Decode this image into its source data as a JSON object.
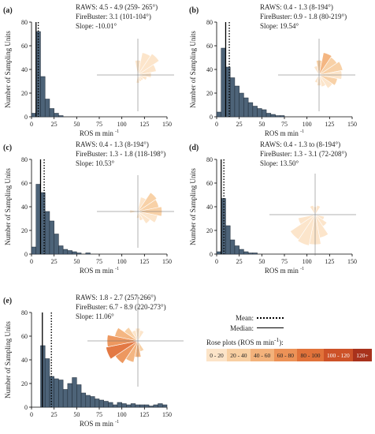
{
  "chart_data": [
    {
      "type": "bar",
      "panel_label": "(a)",
      "annotations": [
        "RAWS: 4.5 - 4.9 (259- 265°)",
        "FireBuster: 3.1 (101-104°)",
        "Slope: -10.01°"
      ],
      "xlabel": "ROS m min",
      "ylabel": "Number of Sampling Units",
      "xlim": [
        0,
        150
      ],
      "ylim": [
        0,
        80
      ],
      "x_ticks": [
        0,
        25,
        50,
        75,
        100,
        125,
        150
      ],
      "y_ticks": [
        0,
        20,
        40,
        60,
        80
      ],
      "bin_width": 5,
      "bin_starts": [
        0,
        5,
        10,
        15,
        20,
        25,
        30,
        35,
        40
      ],
      "values": [
        3,
        72,
        34,
        15,
        7,
        3,
        1,
        0,
        0
      ],
      "mean": 7.5,
      "median": 5,
      "rose": {
        "petals": [
          {
            "angle": 0,
            "length": 0.55,
            "class": 0
          },
          {
            "angle": 22.5,
            "length": 0.85,
            "class": 0
          },
          {
            "angle": 45,
            "length": 0.95,
            "class": 0
          },
          {
            "angle": 67.5,
            "length": 0.7,
            "class": 0
          },
          {
            "angle": 90,
            "length": 0.5,
            "class": 0
          },
          {
            "angle": 112.5,
            "length": 0.35,
            "class": 0
          },
          {
            "angle": 135,
            "length": 0.25,
            "class": 0
          },
          {
            "angle": 157.5,
            "length": 0.25,
            "class": 0
          },
          {
            "angle": 180,
            "length": 0.3,
            "class": 0
          }
        ]
      }
    },
    {
      "type": "bar",
      "panel_label": "(b)",
      "annotations": [
        "RAWS: 0.4 - 1.3  (8-194°)",
        "FireBuster: 0.9 - 1.8  (80-219°)",
        "Slope: 19.54°"
      ],
      "xlabel": "ROS m min",
      "ylabel": "Number of Sampling Units",
      "xlim": [
        0,
        150
      ],
      "ylim": [
        0,
        80
      ],
      "x_ticks": [
        0,
        25,
        50,
        75,
        100,
        125,
        150
      ],
      "y_ticks": [
        0,
        20,
        40,
        60,
        80
      ],
      "bin_width": 5,
      "bin_starts": [
        0,
        5,
        10,
        15,
        20,
        25,
        30,
        35,
        40,
        45,
        50,
        55,
        60,
        65,
        70
      ],
      "values": [
        4,
        58,
        42,
        33,
        26,
        20,
        16,
        12,
        9,
        7,
        6,
        3,
        2,
        1,
        1
      ],
      "mean": 14,
      "median": 10,
      "rose": {
        "petals": [
          {
            "angle": 0,
            "length": 0.55,
            "class": 1
          },
          {
            "angle": 22.5,
            "length": 0.85,
            "class": 2
          },
          {
            "angle": 45,
            "length": 0.8,
            "class": 1
          },
          {
            "angle": 67.5,
            "length": 0.9,
            "class": 1
          },
          {
            "angle": 90,
            "length": 0.85,
            "class": 0
          },
          {
            "angle": 112.5,
            "length": 0.7,
            "class": 1
          },
          {
            "angle": 135,
            "length": 0.6,
            "class": 0
          },
          {
            "angle": 157.5,
            "length": 0.45,
            "class": 0
          },
          {
            "angle": 180,
            "length": 0.4,
            "class": 0
          },
          {
            "angle": 202.5,
            "length": 0.3,
            "class": 0
          },
          {
            "angle": 337.5,
            "length": 0.35,
            "class": 0
          }
        ]
      }
    },
    {
      "type": "bar",
      "panel_label": "(c)",
      "annotations": [
        "RAWS: 0.4 - 1.3  (8-194°)",
        "FireBuster: 1.3 - 1.8  (118-198°)",
        "Slope: 10.53°"
      ],
      "xlabel": "ROS m min",
      "ylabel": "Number of Sampling Units",
      "xlim": [
        0,
        150
      ],
      "ylim": [
        0,
        80
      ],
      "x_ticks": [
        0,
        25,
        50,
        75,
        100,
        125,
        150
      ],
      "y_ticks": [
        0,
        20,
        40,
        60,
        80
      ],
      "bin_width": 5,
      "bin_starts": [
        0,
        5,
        10,
        15,
        20,
        25,
        30,
        35,
        40,
        45,
        50,
        55,
        60
      ],
      "values": [
        6,
        59,
        52,
        36,
        28,
        17,
        7,
        4,
        3,
        2,
        1,
        0,
        1
      ],
      "mean": 14,
      "median": 10,
      "rose": {
        "petals": [
          {
            "angle": 22.5,
            "length": 0.55,
            "class": 0
          },
          {
            "angle": 45,
            "length": 0.85,
            "class": 1
          },
          {
            "angle": 67.5,
            "length": 0.8,
            "class": 1
          },
          {
            "angle": 90,
            "length": 0.9,
            "class": 1
          },
          {
            "angle": 112.5,
            "length": 0.75,
            "class": 0
          },
          {
            "angle": 135,
            "length": 0.55,
            "class": 0
          },
          {
            "angle": 157.5,
            "length": 0.35,
            "class": 0
          },
          {
            "angle": 180,
            "length": 0.25,
            "class": 0
          },
          {
            "angle": 270,
            "length": 0.3,
            "class": 0
          }
        ]
      }
    },
    {
      "type": "bar",
      "panel_label": "(d)",
      "annotations": [
        "RAWS: 0.4 - 1.3 to (8-194°)",
        "FireBuster: 1.3 - 3.1 (72-208°)",
        "Slope: 13.50°"
      ],
      "xlabel": "ROS m min",
      "ylabel": "Number of Sampling Units",
      "xlim": [
        0,
        150
      ],
      "ylim": [
        0,
        80
      ],
      "x_ticks": [
        0,
        25,
        50,
        75,
        100,
        125,
        150
      ],
      "y_ticks": [
        0,
        20,
        40,
        60,
        80
      ],
      "bin_width": 5,
      "bin_starts": [
        0,
        5,
        10,
        15,
        20,
        25,
        30,
        35,
        40
      ],
      "values": [
        2,
        47,
        24,
        12,
        7,
        4,
        2,
        1,
        1
      ],
      "mean": 8,
      "median": 5,
      "rose": {
        "petals": [
          {
            "angle": 0,
            "length": 0.25,
            "class": 0
          },
          {
            "angle": 22.5,
            "length": 0.3,
            "class": 0
          },
          {
            "angle": 112.5,
            "length": 0.3,
            "class": 0
          },
          {
            "angle": 135,
            "length": 0.45,
            "class": 0
          },
          {
            "angle": 157.5,
            "length": 0.75,
            "class": 0
          },
          {
            "angle": 180,
            "length": 0.95,
            "class": 0
          },
          {
            "angle": 202.5,
            "length": 1.0,
            "class": 0
          },
          {
            "angle": 225,
            "length": 0.95,
            "class": 0
          },
          {
            "angle": 247.5,
            "length": 0.55,
            "class": 0
          },
          {
            "angle": 337.5,
            "length": 0.3,
            "class": 0
          }
        ]
      }
    },
    {
      "type": "bar",
      "panel_label": "(e)",
      "annotations": [
        "RAWS: 1.8 - 2.7 (257-266°)",
        "FireBuster: 6.7 - 8.9 (220-273°)",
        "Slope: 11.06°"
      ],
      "xlabel": "ROS m min",
      "ylabel": "Number of Sampling Units",
      "xlim": [
        0,
        150
      ],
      "ylim": [
        0,
        80
      ],
      "x_ticks": [
        0,
        25,
        50,
        75,
        100,
        125,
        150
      ],
      "y_ticks": [
        0,
        20,
        40,
        60,
        80
      ],
      "bin_width": 5,
      "bin_starts": [
        10,
        15,
        20,
        25,
        30,
        35,
        40,
        45,
        50,
        55,
        60,
        65,
        70,
        75,
        80,
        85,
        90,
        95,
        100,
        105,
        110,
        115,
        120,
        125,
        130,
        135,
        140,
        145
      ],
      "values": [
        52,
        41,
        26,
        24,
        23,
        15,
        20,
        25,
        19,
        12,
        10,
        9,
        7,
        6,
        5,
        4,
        2,
        4,
        3,
        2,
        3,
        2,
        2,
        2,
        1,
        2,
        3,
        2
      ],
      "mean": 22,
      "median": 12,
      "rose": {
        "petals": [
          {
            "angle": 0,
            "length": 0.35,
            "class": 0
          },
          {
            "angle": 22.5,
            "length": 0.3,
            "class": 0
          },
          {
            "angle": 157.5,
            "length": 0.3,
            "class": 1
          },
          {
            "angle": 180,
            "length": 0.45,
            "class": 2
          },
          {
            "angle": 202.5,
            "length": 0.6,
            "class": 2
          },
          {
            "angle": 225,
            "length": 0.75,
            "class": 3
          },
          {
            "angle": 247.5,
            "length": 0.9,
            "class": 4
          },
          {
            "angle": 270,
            "length": 0.85,
            "class": 3
          },
          {
            "angle": 292.5,
            "length": 0.65,
            "class": 2
          },
          {
            "angle": 315,
            "length": 0.45,
            "class": 1
          },
          {
            "angle": 337.5,
            "length": 0.3,
            "class": 0
          }
        ]
      }
    }
  ],
  "legend": {
    "mean_label": "Mean:",
    "median_label": "Median:",
    "rose_title": "Rose plots (ROS m min",
    "classes": [
      {
        "label": "0 - 20",
        "color": "#fce4c8"
      },
      {
        "label": "20 - 40",
        "color": "#f8cfa2"
      },
      {
        "label": "40 - 60",
        "color": "#f3b27b"
      },
      {
        "label": "60 - 80",
        "color": "#ec9257"
      },
      {
        "label": "80 - 100",
        "color": "#e1723a"
      },
      {
        "label": "100 - 120",
        "color": "#cd5228"
      },
      {
        "label": "120+",
        "color": "#a8321c"
      }
    ]
  },
  "colors": {
    "bar_fill": "#4d6378",
    "bar_stroke": "#1e2a36",
    "axis": "#000000"
  }
}
